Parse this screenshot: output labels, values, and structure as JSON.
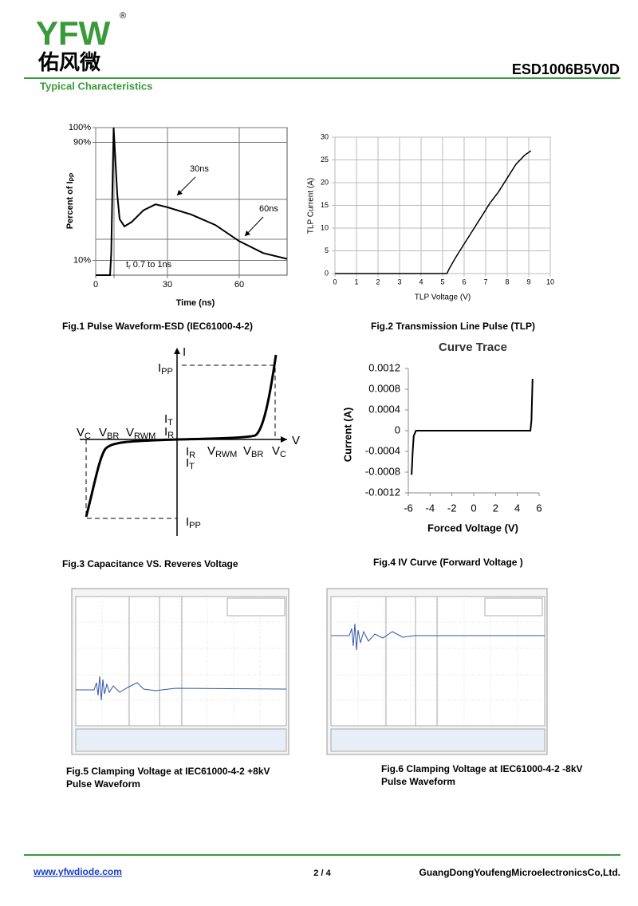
{
  "header": {
    "logo": "YFW",
    "registered": "®",
    "logo_cn": "佑风微",
    "part_number": "ESD1006B5V0D",
    "section": "Typical Characteristics"
  },
  "fig1": {
    "type": "line",
    "caption": "Fig.1 Pulse Waveform-ESD (IEC61000-4-2)",
    "ylabel": "Percent of I",
    "ylabel_sub": "PP",
    "xlabel": "Time (ns)",
    "xlim": [
      0,
      80
    ],
    "xticks": [
      0,
      30,
      60
    ],
    "ylim": [
      0,
      100
    ],
    "yticks": [
      {
        "value": 100,
        "label": "100%"
      },
      {
        "value": 90,
        "label": "90%"
      },
      {
        "value": 10,
        "label": "10%"
      }
    ],
    "x": [
      0,
      6,
      6.5,
      7,
      7.5,
      8,
      9,
      10,
      12,
      15,
      20,
      25,
      30,
      40,
      50,
      60,
      70,
      80
    ],
    "values": [
      0,
      0,
      15,
      60,
      100,
      85,
      55,
      38,
      33,
      36,
      44,
      48,
      46,
      41,
      34,
      23,
      15,
      11
    ],
    "color": "#000000",
    "annotations": {
      "a30": "30ns",
      "a60": "60ns",
      "tr_t": "t",
      "tr_sub": "r",
      "tr_rest": " 0.7 to 1ns"
    }
  },
  "fig2": {
    "type": "line",
    "caption": "Fig.2 Transmission Line Pulse (TLP)",
    "ylabel": "TLP Current (A)",
    "xlabel": "TLP Voltage (V)",
    "xlim": [
      0,
      10
    ],
    "xticks": [
      0,
      1,
      2,
      3,
      4,
      5,
      6,
      7,
      8,
      9,
      10
    ],
    "ylim": [
      0,
      30
    ],
    "yticks": [
      0,
      5,
      10,
      15,
      20,
      25,
      30
    ],
    "x": [
      0,
      5.2,
      5.3,
      5.6,
      6,
      6.4,
      6.8,
      7.2,
      7.6,
      8,
      8.4,
      8.8,
      9.1
    ],
    "values": [
      0,
      0,
      1,
      3.5,
      6.5,
      9.5,
      12.5,
      15.5,
      18,
      21,
      24,
      26,
      27
    ],
    "color": "#000000",
    "grid": true
  },
  "fig3": {
    "caption": "Fig.3 Capacitance VS. Reveres Voltage",
    "axis_i": "I",
    "axis_v": "V",
    "labels": [
      {
        "text": "I",
        "sub": "PP"
      },
      {
        "text": "I",
        "sub": "PP"
      },
      {
        "text": "V",
        "sub": "C"
      },
      {
        "text": "V",
        "sub": "BR"
      },
      {
        "text": "V",
        "sub": "RWM"
      },
      {
        "text": "I",
        "sub": "T"
      },
      {
        "text": "I",
        "sub": "R"
      },
      {
        "text": "I",
        "sub": "R"
      },
      {
        "text": "I",
        "sub": "T"
      },
      {
        "text": "V",
        "sub": "RWM"
      },
      {
        "text": "V",
        "sub": "BR"
      },
      {
        "text": "V",
        "sub": "C"
      }
    ]
  },
  "fig4": {
    "type": "line",
    "title": "Curve Trace",
    "caption": "Fig.4 IV Curve (Forward Voltage )",
    "ylabel": "Current (A)",
    "xlabel": "Forced Voltage (V)",
    "xlim": [
      -6,
      6
    ],
    "xticks": [
      -6,
      -4,
      -2,
      0,
      2,
      4,
      6
    ],
    "ylim": [
      -0.0012,
      0.0012
    ],
    "yticks": [
      0.0012,
      0.0008,
      0.0004,
      0,
      -0.0004,
      -0.0008,
      -0.0012
    ],
    "x": [
      -5.7,
      -5.6,
      -5.5,
      -5.3,
      0,
      5.2,
      5.3,
      5.4
    ],
    "values": [
      -0.00085,
      -0.0004,
      -0.0001,
      0,
      0,
      0,
      0.0002,
      0.001
    ],
    "color": "#000000"
  },
  "fig5": {
    "caption": [
      "Fig.5 Clamping Voltage at IEC61000-4-2 +8kV",
      "Pulse Waveform"
    ]
  },
  "fig6": {
    "caption": [
      "Fig.6 Clamping Voltage at IEC61000-4-2 -8kV",
      "Pulse Waveform"
    ]
  },
  "footer": {
    "website": "www.yfwdiode.com",
    "page": "2 / 4",
    "company": "GuangDongYoufengMicroelectronicsCo,Ltd."
  }
}
